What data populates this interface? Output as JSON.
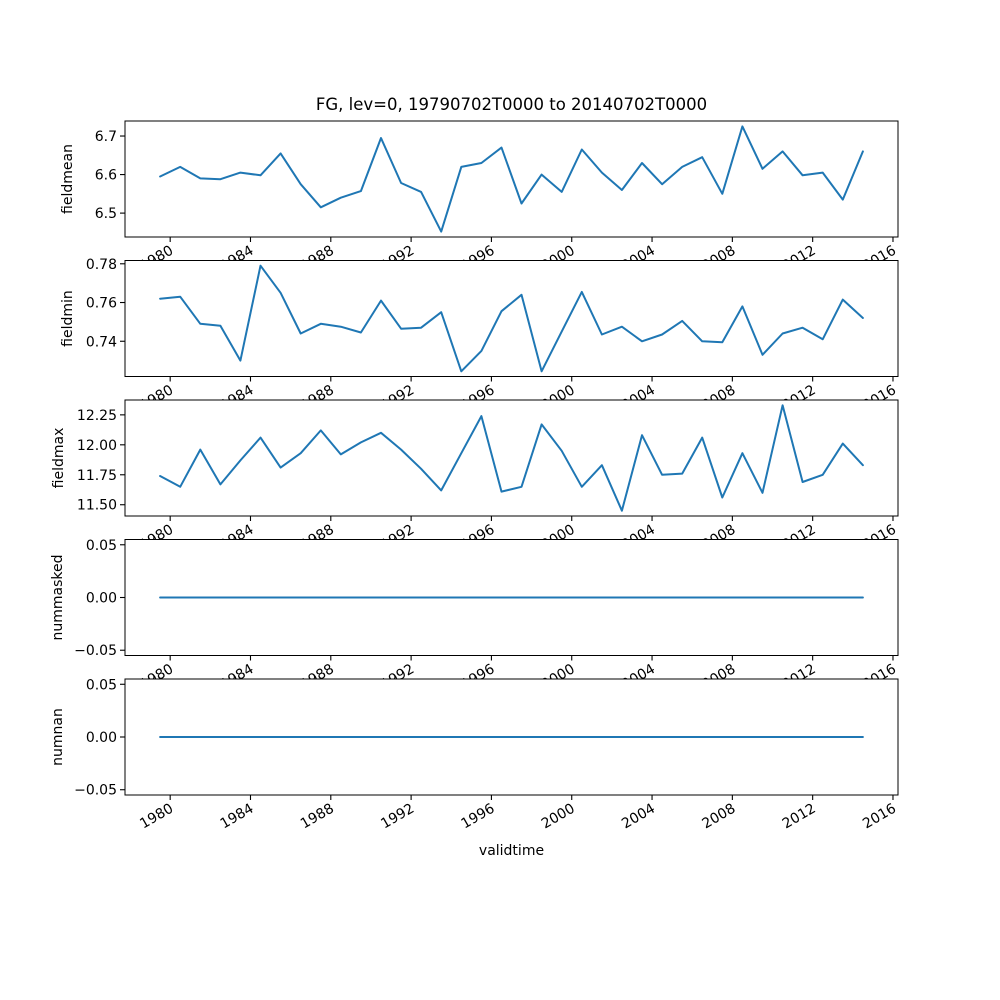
{
  "title": "FG, lev=0, 19790702T0000 to 20140702T0000",
  "xlabel": "validtime",
  "colors": {
    "line": "#1f77b4",
    "axis": "#000000",
    "background": "#ffffff",
    "text": "#000000"
  },
  "x_tick_labels": [
    "1980",
    "1984",
    "1988",
    "1992",
    "1996",
    "2000",
    "2004",
    "2008",
    "2012",
    "2016"
  ],
  "chart_data": {
    "type": "line",
    "title": "FG, lev=0, 19790702T0000 to 20140702T0000",
    "xlabel": "validtime",
    "x": [
      1979,
      1980,
      1981,
      1982,
      1983,
      1984,
      1985,
      1986,
      1987,
      1988,
      1989,
      1990,
      1991,
      1992,
      1993,
      1994,
      1995,
      1996,
      1997,
      1998,
      1999,
      2000,
      2001,
      2002,
      2003,
      2004,
      2005,
      2006,
      2007,
      2008,
      2009,
      2010,
      2011,
      2012,
      2013,
      2014
    ],
    "x_offset": 0.5,
    "xlim": [
      1977.75,
      2016.25
    ],
    "xticks": [
      1980,
      1984,
      1988,
      1992,
      1996,
      2000,
      2004,
      2008,
      2012,
      2016
    ],
    "grid": false,
    "legend": "none",
    "subplots": [
      {
        "name": "fieldmean",
        "ylabel": "fieldmean",
        "ylim": [
          6.438,
          6.739
        ],
        "yticks": [
          {
            "v": 6.5,
            "label": "6.5"
          },
          {
            "v": 6.6,
            "label": "6.6"
          },
          {
            "v": 6.7,
            "label": "6.7"
          }
        ],
        "ylabel_x": 72,
        "values": [
          6.595,
          6.62,
          6.59,
          6.588,
          6.605,
          6.598,
          6.655,
          6.575,
          6.515,
          6.54,
          6.557,
          6.695,
          6.578,
          6.555,
          6.452,
          6.62,
          6.63,
          6.67,
          6.525,
          6.6,
          6.555,
          6.665,
          6.605,
          6.56,
          6.63,
          6.575,
          6.62,
          6.645,
          6.55,
          6.725,
          6.615,
          6.66,
          6.598,
          6.605,
          6.535,
          6.66
        ]
      },
      {
        "name": "fieldmin",
        "ylabel": "fieldmin",
        "ylim": [
          0.7218,
          0.7817
        ],
        "yticks": [
          {
            "v": 0.74,
            "label": "0.74"
          },
          {
            "v": 0.76,
            "label": "0.76"
          },
          {
            "v": 0.78,
            "label": "0.78"
          }
        ],
        "ylabel_x": 72,
        "values": [
          0.762,
          0.763,
          0.749,
          0.748,
          0.73,
          0.779,
          0.765,
          0.744,
          0.749,
          0.7475,
          0.7445,
          0.761,
          0.7465,
          0.747,
          0.755,
          0.7245,
          0.735,
          0.7555,
          0.764,
          0.7245,
          0.745,
          0.7655,
          0.7435,
          0.7475,
          0.74,
          0.7435,
          0.7505,
          0.74,
          0.7395,
          0.758,
          0.733,
          0.744,
          0.747,
          0.741,
          0.7615,
          0.752
        ]
      },
      {
        "name": "fieldmax",
        "ylabel": "fieldmax",
        "ylim": [
          11.406,
          12.374
        ],
        "yticks": [
          {
            "v": 11.5,
            "label": "11.50"
          },
          {
            "v": 11.75,
            "label": "11.75"
          },
          {
            "v": 12.0,
            "label": "12.00"
          },
          {
            "v": 12.25,
            "label": "12.25"
          }
        ],
        "ylabel_x": 63,
        "values": [
          11.74,
          11.65,
          11.96,
          11.67,
          11.87,
          12.06,
          11.81,
          11.93,
          12.12,
          11.92,
          12.02,
          12.1,
          11.96,
          11.8,
          11.62,
          11.93,
          12.24,
          11.61,
          11.65,
          12.17,
          11.95,
          11.65,
          11.83,
          11.45,
          12.08,
          11.75,
          11.76,
          12.06,
          11.56,
          11.93,
          11.6,
          12.33,
          11.69,
          11.75,
          12.01,
          11.83
        ]
      },
      {
        "name": "nummasked",
        "ylabel": "nummasked",
        "ylim": [
          -0.055,
          0.055
        ],
        "yticks": [
          {
            "v": -0.05,
            "label": "−0.05"
          },
          {
            "v": 0.0,
            "label": "0.00"
          },
          {
            "v": 0.05,
            "label": "0.05"
          }
        ],
        "ylabel_x": 62,
        "values": [
          0,
          0,
          0,
          0,
          0,
          0,
          0,
          0,
          0,
          0,
          0,
          0,
          0,
          0,
          0,
          0,
          0,
          0,
          0,
          0,
          0,
          0,
          0,
          0,
          0,
          0,
          0,
          0,
          0,
          0,
          0,
          0,
          0,
          0,
          0,
          0
        ]
      },
      {
        "name": "numnan",
        "ylabel": "numnan",
        "ylim": [
          -0.055,
          0.055
        ],
        "yticks": [
          {
            "v": -0.05,
            "label": "−0.05"
          },
          {
            "v": 0.0,
            "label": "0.00"
          },
          {
            "v": 0.05,
            "label": "0.05"
          }
        ],
        "ylabel_x": 62,
        "values": [
          0,
          0,
          0,
          0,
          0,
          0,
          0,
          0,
          0,
          0,
          0,
          0,
          0,
          0,
          0,
          0,
          0,
          0,
          0,
          0,
          0,
          0,
          0,
          0,
          0,
          0,
          0,
          0,
          0,
          0,
          0,
          0,
          0,
          0,
          0,
          0
        ]
      }
    ]
  }
}
